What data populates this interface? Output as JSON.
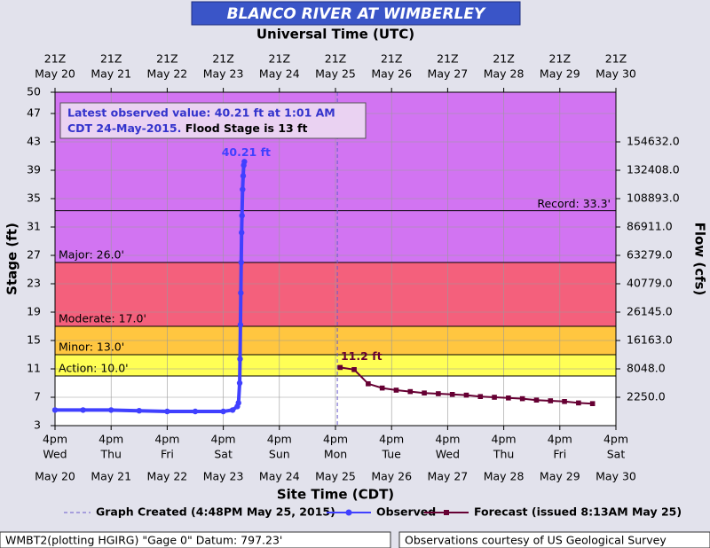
{
  "chart_data": {
    "type": "line",
    "title": "BLANCO RIVER AT WIMBERLEY",
    "top_axis_label": "Universal Time (UTC)",
    "x_label": "Site Time (CDT)",
    "y_label": "Stage (ft)",
    "y2_label": "Flow (cfs)",
    "xlim": [
      "2015-05-20T16:00",
      "2015-05-30T16:00"
    ],
    "xticks": [
      {
        "value": "2015-05-20T16:00",
        "utc": "21Z",
        "time": "4pm",
        "day": "Wed",
        "date": "May 20"
      },
      {
        "value": "2015-05-21T16:00",
        "utc": "21Z",
        "time": "4pm",
        "day": "Thu",
        "date": "May 21"
      },
      {
        "value": "2015-05-22T16:00",
        "utc": "21Z",
        "time": "4pm",
        "day": "Fri",
        "date": "May 22"
      },
      {
        "value": "2015-05-23T16:00",
        "utc": "21Z",
        "time": "4pm",
        "day": "Sat",
        "date": "May 23"
      },
      {
        "value": "2015-05-24T16:00",
        "utc": "21Z",
        "time": "4pm",
        "day": "Sun",
        "date": "May 24"
      },
      {
        "value": "2015-05-25T16:00",
        "utc": "21Z",
        "time": "4pm",
        "day": "Mon",
        "date": "May 25"
      },
      {
        "value": "2015-05-26T16:00",
        "utc": "21Z",
        "time": "4pm",
        "day": "Tue",
        "date": "May 26"
      },
      {
        "value": "2015-05-27T16:00",
        "utc": "21Z",
        "time": "4pm",
        "day": "Wed",
        "date": "May 27"
      },
      {
        "value": "2015-05-28T16:00",
        "utc": "21Z",
        "time": "4pm",
        "day": "Thu",
        "date": "May 28"
      },
      {
        "value": "2015-05-29T16:00",
        "utc": "21Z",
        "time": "4pm",
        "day": "Fri",
        "date": "May 29"
      },
      {
        "value": "2015-05-30T16:00",
        "utc": "21Z",
        "time": "4pm",
        "day": "Sat",
        "date": "May 30"
      }
    ],
    "ylim": [
      3,
      50
    ],
    "yticks": [
      3,
      7,
      11,
      15,
      19,
      23,
      27,
      31,
      35,
      39,
      43,
      47,
      50
    ],
    "y2ticks": [
      {
        "stage": 7,
        "value": 2250,
        "label": "2250.0"
      },
      {
        "stage": 11,
        "value": 8048,
        "label": "8048.0"
      },
      {
        "stage": 15,
        "value": 16163,
        "label": "16163.0"
      },
      {
        "stage": 19,
        "value": 26145,
        "label": "26145.0"
      },
      {
        "stage": 23,
        "value": 40779,
        "label": "40779.0"
      },
      {
        "stage": 27,
        "value": 63279,
        "label": "63279.0"
      },
      {
        "stage": 31,
        "value": 86911,
        "label": "86911.0"
      },
      {
        "stage": 35,
        "value": 108893,
        "label": "108893.0"
      },
      {
        "stage": 39,
        "value": 132408,
        "label": "132408.0"
      },
      {
        "stage": 43,
        "value": 154632,
        "label": "154632.0"
      }
    ],
    "grid": true,
    "bands": [
      {
        "value": 10,
        "label": "Action: 10.0'",
        "color": "#ffff55"
      },
      {
        "value": 13,
        "label": "Minor: 13.0'",
        "color": "#ffc640"
      },
      {
        "value": 17,
        "label": "Moderate: 17.0'",
        "color": "#f4607c"
      },
      {
        "value": 26,
        "label": "Major: 26.0'",
        "color": "#d274f2"
      }
    ],
    "record": {
      "value": 33.3,
      "label": "Record: 33.3'"
    },
    "graph_created": {
      "x": "2015-05-25T16:48",
      "label": "Graph Created (4:48PM May 25, 2015)",
      "color": "#6a5acd"
    },
    "series": [
      {
        "name": "Observed",
        "color": "#4040ff",
        "x": [
          "2015-05-20T16:00",
          "2015-05-21T04:00",
          "2015-05-21T16:00",
          "2015-05-22T04:00",
          "2015-05-22T16:00",
          "2015-05-23T04:00",
          "2015-05-23T16:00",
          "2015-05-23T20:00",
          "2015-05-23T22:00",
          "2015-05-23T22:30",
          "2015-05-23T23:00",
          "2015-05-23T23:10",
          "2015-05-23T23:20",
          "2015-05-23T23:30",
          "2015-05-23T23:40",
          "2015-05-23T23:50",
          "2015-05-24T00:00",
          "2015-05-24T00:15",
          "2015-05-24T00:30",
          "2015-05-24T00:45",
          "2015-05-24T01:01"
        ],
        "values": [
          5.2,
          5.2,
          5.2,
          5.1,
          5.0,
          5.0,
          5.0,
          5.2,
          5.7,
          6.2,
          9.0,
          12.4,
          17.2,
          21.7,
          26.0,
          30.2,
          32.6,
          36.3,
          38.2,
          39.7,
          40.21
        ]
      },
      {
        "name": "Forecast (issued 8:13AM May 25)",
        "color": "#660033",
        "x": [
          "2015-05-25T18:00",
          "2015-05-26T00:00",
          "2015-05-26T06:00",
          "2015-05-26T12:00",
          "2015-05-26T18:00",
          "2015-05-27T00:00",
          "2015-05-27T06:00",
          "2015-05-27T12:00",
          "2015-05-27T18:00",
          "2015-05-28T00:00",
          "2015-05-28T06:00",
          "2015-05-28T12:00",
          "2015-05-28T18:00",
          "2015-05-29T00:00",
          "2015-05-29T06:00",
          "2015-05-29T12:00",
          "2015-05-29T18:00",
          "2015-05-30T00:00",
          "2015-05-30T06:00"
        ],
        "values": [
          11.2,
          10.9,
          8.9,
          8.3,
          8.0,
          7.8,
          7.6,
          7.5,
          7.4,
          7.3,
          7.1,
          7.0,
          6.9,
          6.8,
          6.6,
          6.5,
          6.4,
          6.2,
          6.1
        ]
      }
    ],
    "annotations": {
      "observed_peak": "40.21 ft",
      "forecast_peak": "11.2 ft"
    },
    "info_box": {
      "line1": "Latest observed value: 40.21 ft at 1:01 AM",
      "line2": "CDT 24-May-2015.",
      "flood_stage": "Flood Stage is 13 ft"
    }
  },
  "footer": {
    "left": "WMBT2(plotting HGIRG) \"Gage 0\" Datum: 797.23'",
    "right": "Observations courtesy of US Geological Survey"
  }
}
